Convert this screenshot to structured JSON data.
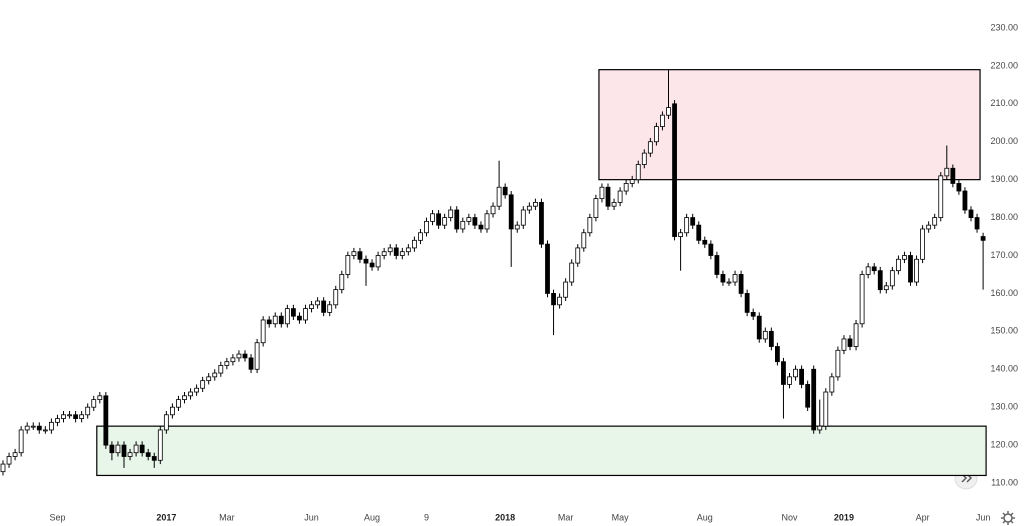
{
  "chart_data": {
    "type": "candlestick",
    "categories": [
      null,
      null,
      null,
      null,
      null,
      null,
      null,
      null,
      null,
      "Sep",
      null,
      null,
      null,
      null,
      null,
      null,
      null,
      null,
      null,
      null,
      null,
      null,
      null,
      null,
      null,
      null,
      null,
      "2017",
      null,
      null,
      null,
      null,
      null,
      null,
      null,
      null,
      null,
      "Mar",
      null,
      null,
      null,
      null,
      null,
      null,
      null,
      null,
      null,
      null,
      null,
      null,
      null,
      "Jun",
      null,
      null,
      null,
      null,
      null,
      null,
      null,
      null,
      null,
      "Aug",
      null,
      null,
      null,
      null,
      null,
      null,
      null,
      null,
      "9",
      null,
      null,
      null,
      null,
      null,
      null,
      null,
      null,
      null,
      null,
      null,
      null,
      "2018",
      null,
      null,
      null,
      null,
      null,
      null,
      null,
      null,
      null,
      "Mar",
      null,
      null,
      null,
      null,
      null,
      null,
      null,
      null,
      "May",
      null,
      null,
      null,
      null,
      null,
      null,
      null,
      null,
      null,
      null,
      null,
      null,
      null,
      "Aug",
      null,
      null,
      null,
      null,
      null,
      null,
      null,
      null,
      null,
      null,
      null,
      null,
      null,
      "Nov",
      null,
      null,
      null,
      null,
      null,
      null,
      null,
      null,
      "2019",
      null,
      null,
      null,
      null,
      null,
      null,
      null,
      null,
      null,
      null,
      null,
      null,
      "Apr",
      null,
      null,
      null,
      null,
      null,
      null,
      null,
      null,
      null,
      "Jun"
    ],
    "open": [
      113,
      115,
      117,
      118,
      124,
      125,
      125,
      124,
      124,
      126,
      127,
      128,
      128,
      127,
      128,
      130,
      132,
      133,
      120,
      118,
      120,
      117,
      118,
      120,
      118,
      117,
      116,
      124,
      128,
      130,
      132,
      133,
      134,
      135,
      137,
      138,
      139,
      141,
      142,
      143,
      144,
      143,
      140,
      147,
      153,
      152,
      154,
      152,
      156,
      154,
      153,
      156,
      157,
      158,
      155,
      157,
      161,
      165,
      170,
      171,
      169,
      168,
      167,
      170,
      171,
      172,
      170,
      171,
      172,
      174,
      176,
      179,
      181,
      178,
      180,
      182,
      177,
      179,
      180,
      178,
      177,
      181,
      183,
      188,
      186,
      177,
      178,
      182,
      183,
      184,
      173,
      160,
      157,
      159,
      163,
      168,
      172,
      176,
      180,
      185,
      188,
      183,
      184,
      187,
      189,
      190,
      194,
      197,
      200,
      204,
      207,
      210,
      175,
      176,
      180,
      178,
      174,
      173,
      170,
      165,
      163,
      163,
      165,
      160,
      155,
      154,
      148,
      150,
      146,
      142,
      136,
      138,
      140,
      136,
      140,
      124,
      125,
      134,
      138,
      145,
      148,
      146,
      152,
      165,
      167,
      166,
      161,
      162,
      166,
      169,
      170,
      163,
      169,
      177,
      178,
      180,
      191,
      193,
      189,
      187,
      182,
      180,
      175
    ],
    "high": [
      116,
      118,
      119,
      125,
      126,
      126,
      126,
      125,
      127,
      128,
      129,
      129,
      129,
      129,
      131,
      133,
      134,
      134,
      121,
      121,
      121,
      119,
      121,
      121,
      119,
      118,
      125,
      129,
      131,
      133,
      134,
      135,
      136,
      138,
      139,
      140,
      142,
      143,
      144,
      145,
      145,
      144,
      148,
      154,
      154,
      155,
      155,
      157,
      157,
      155,
      157,
      158,
      159,
      159,
      158,
      162,
      166,
      171,
      172,
      172,
      170,
      169,
      171,
      172,
      173,
      173,
      172,
      173,
      175,
      177,
      180,
      182,
      182,
      181,
      183,
      183,
      180,
      181,
      181,
      179,
      182,
      184,
      195,
      189,
      187,
      179,
      183,
      184,
      185,
      185,
      174,
      161,
      160,
      164,
      169,
      173,
      177,
      181,
      186,
      189,
      189,
      185,
      188,
      190,
      191,
      195,
      198,
      201,
      205,
      208,
      219,
      211,
      177,
      181,
      181,
      179,
      175,
      174,
      171,
      166,
      164,
      166,
      166,
      161,
      156,
      155,
      151,
      151,
      147,
      143,
      139,
      141,
      141,
      137,
      141,
      132,
      135,
      139,
      146,
      149,
      149,
      153,
      166,
      168,
      168,
      167,
      163,
      167,
      170,
      171,
      171,
      170,
      178,
      179,
      181,
      192,
      199,
      194,
      190,
      188,
      183,
      181,
      176
    ],
    "low": [
      112,
      114,
      116,
      117,
      123,
      124,
      123,
      123,
      123,
      125,
      126,
      127,
      126,
      126,
      127,
      129,
      131,
      119,
      116,
      117,
      114,
      116,
      117,
      117,
      116,
      114,
      115,
      123,
      127,
      129,
      131,
      132,
      133,
      134,
      136,
      137,
      138,
      140,
      141,
      142,
      142,
      139,
      139,
      146,
      151,
      151,
      151,
      151,
      153,
      152,
      152,
      155,
      156,
      154,
      154,
      156,
      160,
      164,
      169,
      168,
      162,
      166,
      166,
      169,
      170,
      169,
      169,
      170,
      171,
      173,
      175,
      178,
      177,
      177,
      179,
      176,
      176,
      178,
      177,
      176,
      176,
      180,
      182,
      185,
      167,
      176,
      177,
      181,
      182,
      172,
      159,
      149,
      156,
      158,
      162,
      167,
      171,
      175,
      179,
      184,
      182,
      182,
      183,
      186,
      188,
      189,
      193,
      196,
      199,
      203,
      206,
      174,
      166,
      175,
      177,
      173,
      172,
      169,
      164,
      162,
      162,
      162,
      159,
      154,
      153,
      147,
      147,
      145,
      141,
      127,
      135,
      137,
      135,
      129,
      123,
      123,
      124,
      133,
      137,
      144,
      145,
      145,
      151,
      164,
      165,
      160,
      160,
      161,
      165,
      168,
      162,
      162,
      168,
      176,
      177,
      179,
      190,
      188,
      186,
      181,
      179,
      176,
      161
    ],
    "close": [
      115,
      117,
      118,
      124,
      125,
      125,
      124,
      124,
      126,
      127,
      128,
      128,
      127,
      128,
      130,
      132,
      133,
      120,
      118,
      120,
      117,
      118,
      120,
      118,
      117,
      116,
      124,
      128,
      130,
      132,
      133,
      134,
      135,
      137,
      138,
      139,
      141,
      142,
      143,
      144,
      143,
      140,
      147,
      153,
      152,
      154,
      152,
      156,
      154,
      153,
      156,
      157,
      158,
      155,
      157,
      161,
      165,
      170,
      171,
      169,
      168,
      167,
      170,
      171,
      172,
      170,
      171,
      172,
      174,
      176,
      179,
      181,
      178,
      180,
      182,
      177,
      179,
      180,
      178,
      177,
      181,
      183,
      188,
      186,
      177,
      178,
      182,
      183,
      184,
      173,
      160,
      157,
      159,
      163,
      168,
      172,
      176,
      180,
      185,
      188,
      183,
      184,
      187,
      189,
      190,
      194,
      197,
      200,
      204,
      207,
      209,
      175,
      176,
      180,
      178,
      174,
      173,
      170,
      165,
      163,
      163,
      165,
      160,
      155,
      154,
      148,
      150,
      146,
      142,
      136,
      138,
      140,
      136,
      130,
      124,
      125,
      134,
      138,
      145,
      148,
      146,
      152,
      165,
      167,
      166,
      161,
      162,
      166,
      169,
      170,
      163,
      169,
      177,
      178,
      180,
      191,
      193,
      189,
      187,
      182,
      180,
      177,
      174
    ],
    "up_color": "#ffffff",
    "down_color": "#000000",
    "zones": [
      {
        "from": 190,
        "to": 219,
        "start": 99,
        "end": 161,
        "color": "#fde6ea"
      },
      {
        "from": 112,
        "to": 125,
        "start": 16,
        "end": 162,
        "color": "#e8f5e9"
      }
    ],
    "ylim": [
      105,
      235
    ],
    "yticks": [
      {
        "value": 110,
        "label": "110.00"
      },
      {
        "value": 120,
        "label": "120.00"
      },
      {
        "value": 130,
        "label": "130.00"
      },
      {
        "value": 140,
        "label": "140.00"
      },
      {
        "value": 150,
        "label": "150.00"
      },
      {
        "value": 160,
        "label": "160.00"
      },
      {
        "value": 170,
        "label": "170.00"
      },
      {
        "value": 180,
        "label": "180.00"
      },
      {
        "value": 190,
        "label": "190.00"
      },
      {
        "value": 200,
        "label": "200.00"
      },
      {
        "value": 210,
        "label": "210.00"
      },
      {
        "value": 220,
        "label": "220.00"
      },
      {
        "value": 230,
        "label": "230.00"
      }
    ],
    "grid": false
  }
}
